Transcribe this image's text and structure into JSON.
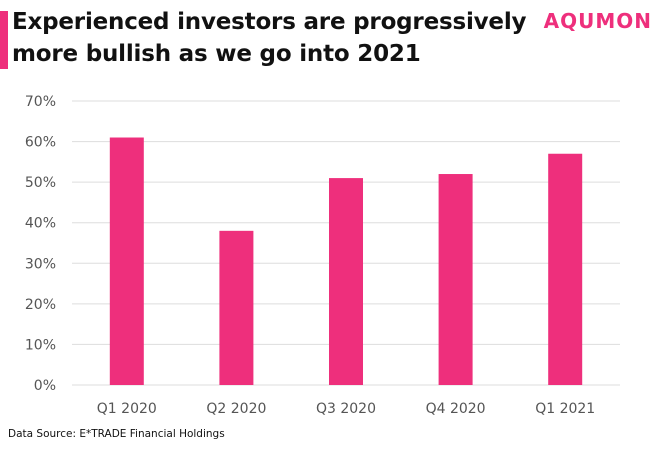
{
  "title": "Experienced investors are progressively more bullish as we go into 2021",
  "brand": "AQUMON",
  "source": "Data Source: E*TRADE Financial Holdings",
  "colors": {
    "bar": "#ee2f7c",
    "grid": "#dddddd",
    "axis_text": "#555555"
  },
  "chart_data": {
    "type": "bar",
    "categories": [
      "Q1 2020",
      "Q2 2020",
      "Q3 2020",
      "Q4 2020",
      "Q1 2021"
    ],
    "values": [
      61,
      38,
      51,
      52,
      57
    ],
    "ylim": [
      0,
      70
    ],
    "yticks": [
      0,
      10,
      20,
      30,
      40,
      50,
      60,
      70
    ],
    "ytick_labels": [
      "0%",
      "10%",
      "20%",
      "30%",
      "40%",
      "50%",
      "60%",
      "70%"
    ],
    "grid": true,
    "xlabel": "",
    "ylabel": ""
  }
}
